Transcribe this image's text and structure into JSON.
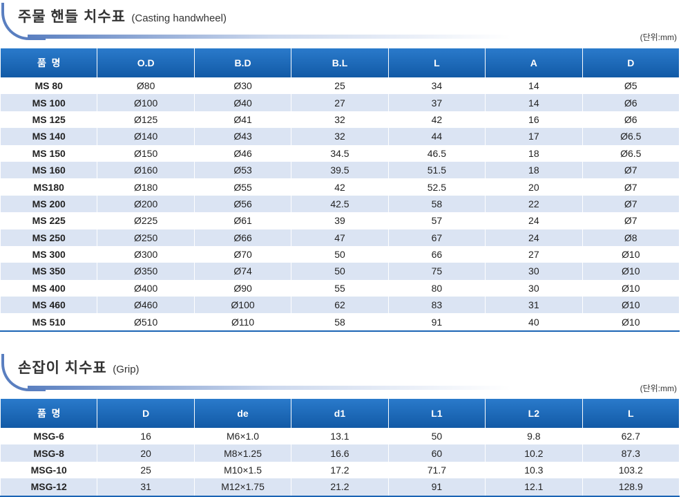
{
  "handwheel": {
    "title_kr": "주물 핸들 치수표",
    "title_en": "(Casting handwheel)",
    "unit": "(단위:mm)",
    "columns": [
      "품  명",
      "O.D",
      "B.D",
      "B.L",
      "L",
      "A",
      "D"
    ],
    "rows": [
      [
        "MS 80",
        "Ø80",
        "Ø30",
        "25",
        "34",
        "14",
        "Ø5"
      ],
      [
        "MS 100",
        "Ø100",
        "Ø40",
        "27",
        "37",
        "14",
        "Ø6"
      ],
      [
        "MS 125",
        "Ø125",
        "Ø41",
        "32",
        "42",
        "16",
        "Ø6"
      ],
      [
        "MS 140",
        "Ø140",
        "Ø43",
        "32",
        "44",
        "17",
        "Ø6.5"
      ],
      [
        "MS 150",
        "Ø150",
        "Ø46",
        "34.5",
        "46.5",
        "18",
        "Ø6.5"
      ],
      [
        "MS 160",
        "Ø160",
        "Ø53",
        "39.5",
        "51.5",
        "18",
        "Ø7"
      ],
      [
        "MS180",
        "Ø180",
        "Ø55",
        "42",
        "52.5",
        "20",
        "Ø7"
      ],
      [
        "MS 200",
        "Ø200",
        "Ø56",
        "42.5",
        "58",
        "22",
        "Ø7"
      ],
      [
        "MS 225",
        "Ø225",
        "Ø61",
        "39",
        "57",
        "24",
        "Ø7"
      ],
      [
        "MS 250",
        "Ø250",
        "Ø66",
        "47",
        "67",
        "24",
        "Ø8"
      ],
      [
        "MS 300",
        "Ø300",
        "Ø70",
        "50",
        "66",
        "27",
        "Ø10"
      ],
      [
        "MS 350",
        "Ø350",
        "Ø74",
        "50",
        "75",
        "30",
        "Ø10"
      ],
      [
        "MS 400",
        "Ø400",
        "Ø90",
        "55",
        "80",
        "30",
        "Ø10"
      ],
      [
        "MS 460",
        "Ø460",
        "Ø100",
        "62",
        "83",
        "31",
        "Ø10"
      ],
      [
        "MS 510",
        "Ø510",
        "Ø110",
        "58",
        "91",
        "40",
        "Ø10"
      ]
    ]
  },
  "grip": {
    "title_kr": "손잡이 치수표",
    "title_en": "(Grip)",
    "unit": "(단위:mm)",
    "columns": [
      "품  명",
      "D",
      "de",
      "d1",
      "L1",
      "L2",
      "L"
    ],
    "rows": [
      [
        "MSG-6",
        "16",
        "M6×1.0",
        "13.1",
        "50",
        "9.8",
        "62.7"
      ],
      [
        "MSG-8",
        "20",
        "M8×1.25",
        "16.6",
        "60",
        "10.2",
        "87.3"
      ],
      [
        "MSG-10",
        "25",
        "M10×1.5",
        "17.2",
        "71.7",
        "10.3",
        "103.2"
      ],
      [
        "MSG-12",
        "31",
        "M12×1.75",
        "21.2",
        "91",
        "12.1",
        "128.9"
      ]
    ]
  },
  "colors": {
    "header": "#1a64b4",
    "stripe": "#dbe4f3",
    "accent": "#5a7fc0"
  }
}
